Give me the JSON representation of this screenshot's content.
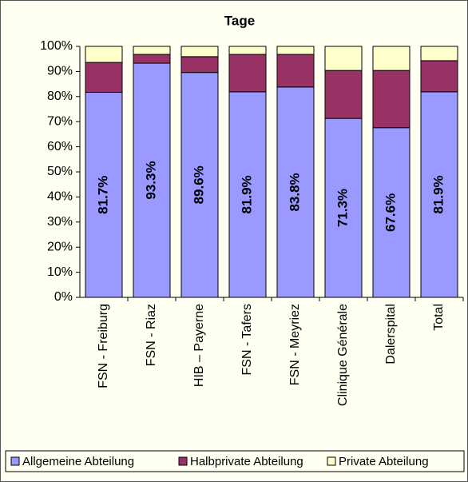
{
  "chart_data": {
    "type": "stacked_bar",
    "title": "Tage",
    "categories": [
      "FSN - Freiburg",
      "FSN  - Riaz",
      "HIB – Payerne",
      "FSN - Tafers",
      "FSN - Meyriez",
      "Clinique Générale",
      "Dalerspital",
      "Total"
    ],
    "series": [
      {
        "name": "Allgemeine Abteilung",
        "color": "#9999ff",
        "values": [
          81.7,
          93.3,
          89.6,
          81.9,
          83.8,
          71.3,
          67.6,
          81.9
        ],
        "value_labels": [
          "81.7%",
          "93.3%",
          "89.6%",
          "81.9%",
          "83.8%",
          "71.3%",
          "67.6%",
          "81.9%"
        ]
      },
      {
        "name": "Halbprivate Abteilung",
        "color": "#993366",
        "values": [
          11.9,
          3.5,
          6.3,
          14.9,
          13.0,
          19.1,
          22.8,
          12.4
        ]
      },
      {
        "name": "Private Abteilung",
        "color": "#ffffcc",
        "values": [
          6.4,
          3.2,
          4.1,
          3.2,
          3.2,
          9.6,
          9.6,
          5.7
        ]
      }
    ],
    "ylim": [
      0,
      100
    ],
    "yticks": [
      {
        "value": 0,
        "label": "0%"
      },
      {
        "value": 10,
        "label": "10%"
      },
      {
        "value": 20,
        "label": "20%"
      },
      {
        "value": 30,
        "label": "30%"
      },
      {
        "value": 40,
        "label": "40%"
      },
      {
        "value": 50,
        "label": "50%"
      },
      {
        "value": 60,
        "label": "60%"
      },
      {
        "value": 70,
        "label": "70%"
      },
      {
        "value": 80,
        "label": "80%"
      },
      {
        "value": 90,
        "label": "90%"
      },
      {
        "value": 100,
        "label": "100%"
      }
    ],
    "legend": "bottom"
  }
}
